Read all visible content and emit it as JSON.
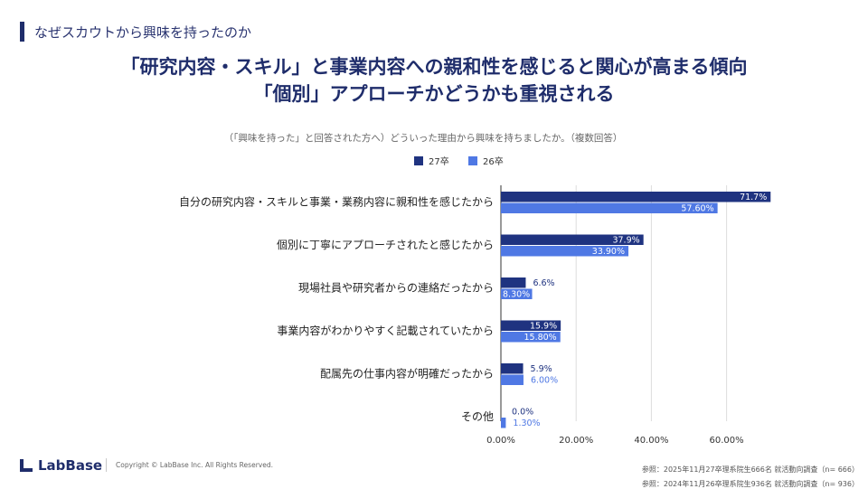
{
  "header": {
    "section_label": "なぜスカウトから興味を持ったのか",
    "title_line1": "「研究内容・スキル」と事業内容への親和性を感じると関心が高まる傾向",
    "title_line2": "「個別」アプローチかどうかも重視される"
  },
  "chart_data": {
    "type": "bar",
    "orientation": "horizontal",
    "subtitle": "（「興味を持った」と回答された方へ）どういった理由から興味を持ちましたか。（複数回答）",
    "categories": [
      "自分の研究内容・スキルと事業・業務内容に親和性を感じたから",
      "個別に丁寧にアプローチされたと感じたから",
      "現場社員や研究者からの連絡だったから",
      "事業内容がわかりやすく記載されていたから",
      "配属先の仕事内容が明確だったから",
      "その他"
    ],
    "series": [
      {
        "name": "27卒",
        "color": "#1f3380",
        "values": [
          71.7,
          37.9,
          6.6,
          15.9,
          5.9,
          0.0
        ],
        "labels": [
          "71.7%",
          "37.9%",
          "6.6%",
          "15.9%",
          "5.9%",
          "0.0%"
        ]
      },
      {
        "name": "26卒",
        "color": "#4f78e4",
        "values": [
          57.6,
          33.9,
          8.3,
          15.8,
          6.0,
          1.3
        ],
        "labels": [
          "57.60%",
          "33.90%",
          "8.30%",
          "15.80%",
          "6.00%",
          "1.30%"
        ]
      }
    ],
    "xlim": [
      0,
      72
    ],
    "xticks": [
      0,
      20,
      40,
      60
    ],
    "xtick_labels": [
      "0.00%",
      "20.00%",
      "40.00%",
      "60.00%"
    ],
    "grid": true,
    "legend_position": "top"
  },
  "footer": {
    "logo_text": "LabBase",
    "copyright": "Copyright ©  LabBase Inc. All Rights Reserved.",
    "source1": "参照：2025年11月27卒理系院生666名 就活動向調査（n= 666）",
    "source2": "参照：2024年11月26卒理系院生936名 就活動向調査（n= 936）"
  }
}
